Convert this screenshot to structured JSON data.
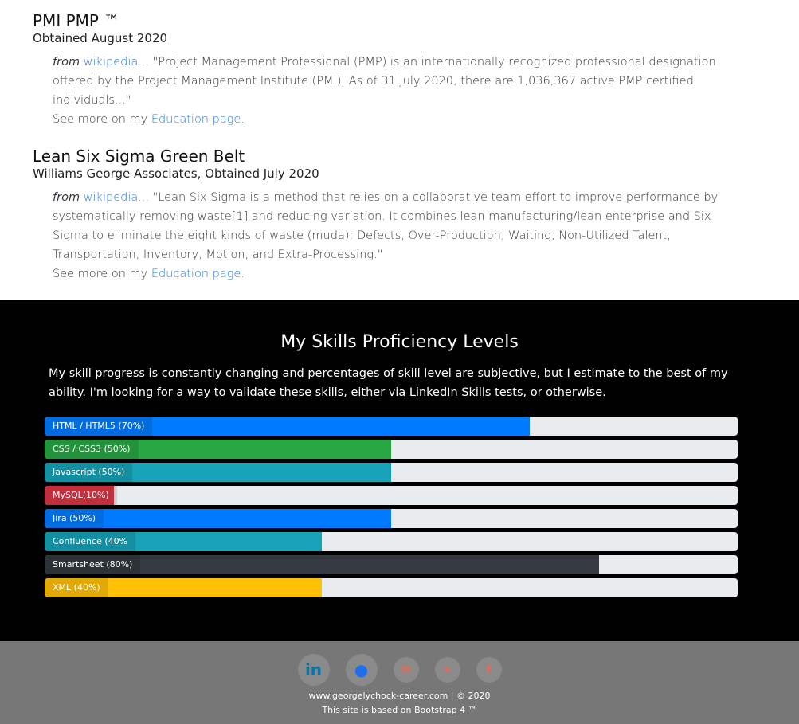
{
  "certs": [
    {
      "title": "PMI PMP ™",
      "subtitle": "Obtained August 2020",
      "from": "from",
      "wiki_link": "wikipedia...",
      "quote": "\"Project Management Professional (PMP) is an internationally recognized professional designation offered by the Project Management Institute (PMI). As of 31 July 2020, there are 1,036,367 active PMP certified individuals...\"",
      "see_more": "See more on my",
      "education_link": "Education page",
      "period": "."
    },
    {
      "title": "Lean Six Sigma Green Belt",
      "subtitle": "Williams George Associates, Obtained July 2020",
      "from": "from",
      "wiki_link": "wikipedia...",
      "quote": "\"Lean Six Sigma is a method that relies on a collaborative team effort to improve performance by systematically removing waste[1] and reducing variation. It combines lean manufacturing/lean enterprise and Six Sigma to eliminate the eight kinds of waste (muda): Defects, Over-Production, Waiting, Non-Utilized Talent, Transportation, Inventory, Motion, and Extra-Processing.\"",
      "see_more": "See more on my",
      "education_link": "Education page",
      "period": "."
    }
  ],
  "skills": {
    "title": "My Skills Proficiency Levels",
    "description": "My skill progress is constantly changing and percentages of skill level are subjective, but I estimate to the best of my ability. I'm looking for a way to validate these skills, either via LinkedIn Skills tests, or otherwise.",
    "bars": [
      {
        "label": "HTML / HTML5 (70%)",
        "percent": 70,
        "color": "#007bff"
      },
      {
        "label": "CSS / CSS3 (50%)",
        "percent": 50,
        "color": "#28a745"
      },
      {
        "label": "Javascript (50%)",
        "percent": 50,
        "color": "#17a2b8"
      },
      {
        "label": "MySQL(10%)",
        "percent": 10,
        "color": "#dc3545"
      },
      {
        "label": "Jira (50%)",
        "percent": 50,
        "color": "#007bff"
      },
      {
        "label": "Confluence (40%",
        "percent": 40,
        "color": "#17a2b8"
      },
      {
        "label": "Smartsheet (80%)",
        "percent": 80,
        "color": "#343a40"
      },
      {
        "label": "XML (40%)",
        "percent": 40,
        "color": "#ffc107"
      }
    ]
  },
  "footer": {
    "social": [
      {
        "icon": "linkedin-icon",
        "glyph": "in",
        "color": "#0077b5"
      },
      {
        "icon": "github-icon",
        "glyph": "●",
        "color": "#1f6feb"
      },
      {
        "icon": "pinterest-icon",
        "glyph": "℗",
        "color": "#e06c5a"
      },
      {
        "icon": "twitter-icon",
        "glyph": "✦",
        "color": "#e06c5a"
      },
      {
        "icon": "facebook-icon",
        "glyph": "f",
        "color": "#e06c5a"
      }
    ],
    "site_line": "www.georgelychock-career.com | © 2020",
    "based_line": "This site is based on Bootstrap 4 ™"
  }
}
